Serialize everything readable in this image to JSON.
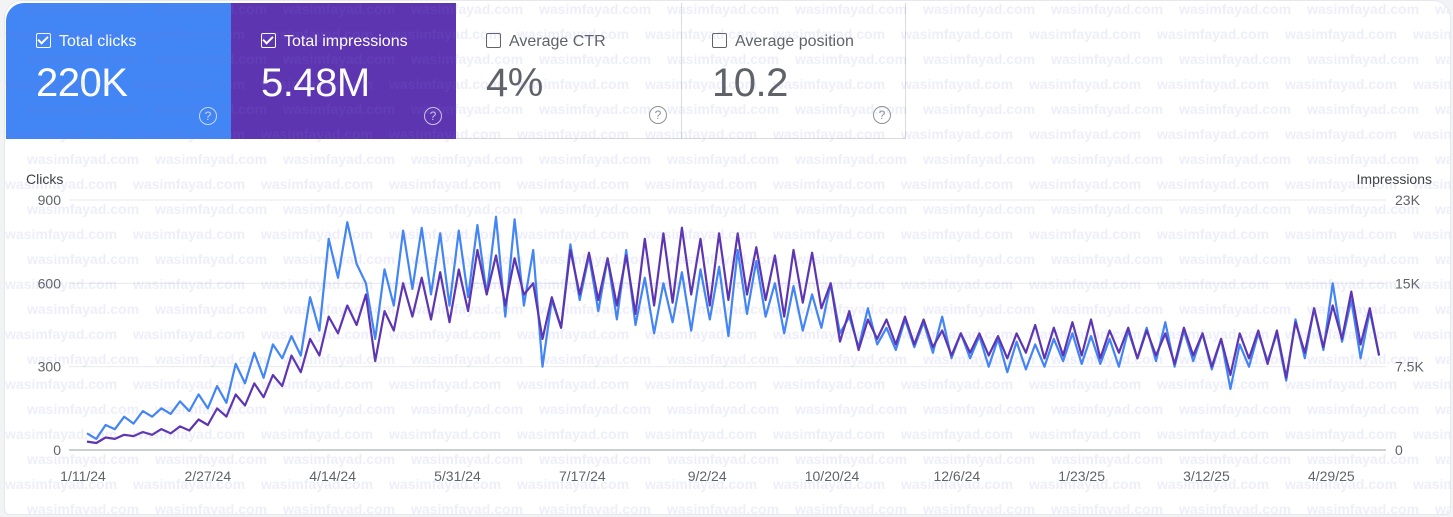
{
  "metrics": [
    {
      "label": "Total clicks",
      "value": "220K",
      "checked": true,
      "color": "#4285f4"
    },
    {
      "label": "Total impressions",
      "value": "5.48M",
      "checked": true,
      "color": "#5e35b1"
    },
    {
      "label": "Average CTR",
      "value": "4%",
      "checked": false
    },
    {
      "label": "Average position",
      "value": "10.2",
      "checked": false
    }
  ],
  "help_icon": "?",
  "watermark": "wasimfayad.com",
  "chart_data": {
    "type": "line",
    "left_axis": {
      "label": "Clicks",
      "ticks": [
        "0",
        "300",
        "600",
        "900"
      ],
      "range": [
        0,
        900
      ]
    },
    "right_axis": {
      "label": "Impressions",
      "ticks": [
        "0",
        "7.5K",
        "15K",
        "23K"
      ],
      "range": [
        0,
        23000
      ]
    },
    "x_ticks": [
      "1/11/24",
      "2/27/24",
      "4/14/24",
      "5/31/24",
      "7/17/24",
      "9/2/24",
      "10/20/24",
      "12/6/24",
      "1/23/25",
      "3/12/25",
      "4/29/25"
    ],
    "x_tick_spacing_days": 47,
    "point_spacing_days": 3.5,
    "grid": true,
    "series": [
      {
        "name": "Clicks",
        "axis": "left",
        "color": "#4285f4",
        "values": [
          60,
          40,
          90,
          75,
          120,
          95,
          140,
          120,
          150,
          130,
          175,
          140,
          200,
          150,
          230,
          170,
          310,
          240,
          350,
          260,
          380,
          330,
          410,
          340,
          550,
          430,
          760,
          620,
          820,
          670,
          600,
          400,
          650,
          520,
          790,
          580,
          800,
          560,
          780,
          520,
          790,
          550,
          810,
          560,
          840,
          480,
          830,
          520,
          720,
          300,
          540,
          440,
          740,
          540,
          700,
          500,
          690,
          470,
          720,
          450,
          620,
          420,
          600,
          460,
          640,
          430,
          650,
          470,
          660,
          410,
          720,
          490,
          680,
          480,
          600,
          420,
          590,
          430,
          560,
          440,
          600,
          420,
          480,
          370,
          510,
          380,
          440,
          360,
          470,
          370,
          460,
          350,
          480,
          330,
          420,
          330,
          410,
          300,
          400,
          280,
          390,
          290,
          380,
          300,
          400,
          320,
          420,
          310,
          410,
          310,
          400,
          300,
          430,
          330,
          440,
          320,
          460,
          300,
          430,
          320,
          420,
          290,
          400,
          220,
          380,
          300,
          420,
          320,
          420,
          250,
          470,
          330,
          510,
          360,
          600,
          390,
          540,
          330,
          500,
          340
        ]
      },
      {
        "name": "Impressions",
        "axis": "right",
        "color": "#5e35b1",
        "values": [
          770,
          640,
          1150,
          1020,
          1400,
          1280,
          1660,
          1400,
          1920,
          1530,
          2170,
          1790,
          2810,
          2300,
          3830,
          3070,
          5110,
          4090,
          6130,
          4860,
          6900,
          5880,
          8690,
          7160,
          10220,
          8690,
          12270,
          10730,
          13290,
          11500,
          14310,
          8180,
          12780,
          10990,
          15340,
          12270,
          15850,
          12010,
          16360,
          11760,
          16610,
          12780,
          18400,
          14310,
          17890,
          13290,
          17640,
          14310,
          15340,
          10220,
          14060,
          11250,
          18400,
          14310,
          18150,
          13800,
          17640,
          13290,
          17890,
          12520,
          19430,
          13290,
          19940,
          13550,
          20450,
          14310,
          19430,
          13290,
          19940,
          13800,
          19940,
          14310,
          18660,
          13800,
          17890,
          12270,
          18400,
          13550,
          18150,
          13040,
          15340,
          9970,
          12780,
          9200,
          12010,
          10220,
          12010,
          9710,
          12270,
          9710,
          12010,
          9460,
          10990,
          8690,
          10730,
          8950,
          10730,
          8690,
          10480,
          8430,
          10730,
          8950,
          11500,
          8430,
          11250,
          8690,
          11760,
          8690,
          12010,
          8430,
          10990,
          8950,
          11250,
          8430,
          10990,
          8690,
          10730,
          7920,
          11250,
          8690,
          10730,
          7670,
          10220,
          6900,
          10730,
          8430,
          10990,
          7920,
          10990,
          6650,
          11760,
          8950,
          13040,
          9460,
          13290,
          10220,
          14570,
          9710,
          13040,
          8690
        ]
      }
    ]
  }
}
